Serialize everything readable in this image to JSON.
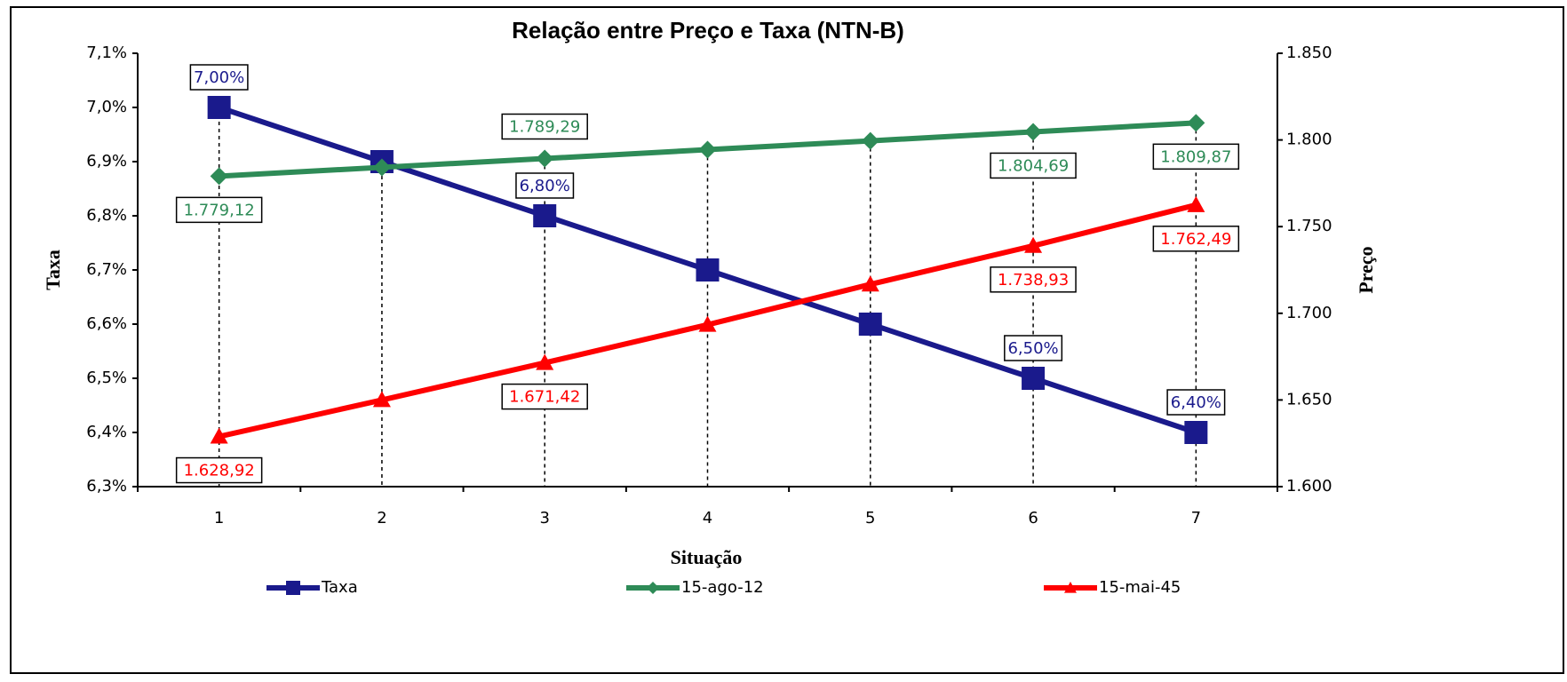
{
  "chart_data": {
    "type": "line",
    "title": "Relação entre Preço e Taxa (NTN-B)",
    "x_label": "Situação",
    "y_label": "Taxa",
    "y2_label": "Preço",
    "categories": [
      "1",
      "2",
      "3",
      "4",
      "5",
      "6",
      "7"
    ],
    "ylim": [
      6.3,
      7.1
    ],
    "yticks": [
      {
        "value": 6.3,
        "label": "6,3%"
      },
      {
        "value": 6.4,
        "label": "6,4%"
      },
      {
        "value": 6.5,
        "label": "6,5%"
      },
      {
        "value": 6.6,
        "label": "6,6%"
      },
      {
        "value": 6.7,
        "label": "6,7%"
      },
      {
        "value": 6.8,
        "label": "6,8%"
      },
      {
        "value": 6.9,
        "label": "6,9%"
      },
      {
        "value": 7.0,
        "label": "7,0%"
      },
      {
        "value": 7.1,
        "label": "7,1%"
      }
    ],
    "y2lim": [
      1600,
      1850
    ],
    "y2ticks": [
      {
        "value": 1600,
        "label": "1.600"
      },
      {
        "value": 1650,
        "label": "1.650"
      },
      {
        "value": 1700,
        "label": "1.700"
      },
      {
        "value": 1750,
        "label": "1.750"
      },
      {
        "value": 1800,
        "label": "1.800"
      },
      {
        "value": 1850,
        "label": "1.850"
      }
    ],
    "legend": "bottom",
    "series": [
      {
        "name": "Taxa",
        "color": "#1a1a8c",
        "marker": "square",
        "axis": "y",
        "values": [
          7.0,
          6.9,
          6.8,
          6.7,
          6.6,
          6.5,
          6.4
        ],
        "value_labels": [
          "7,00%",
          null,
          "6,80%",
          null,
          null,
          "6,50%",
          "6,40%"
        ]
      },
      {
        "name": "15-ago-12",
        "color": "#2e8b57",
        "marker": "diamond",
        "axis": "y2",
        "values": [
          1779.12,
          1784.2,
          1789.29,
          1794.4,
          1799.5,
          1804.69,
          1809.87
        ],
        "value_labels": [
          "1.779,12",
          null,
          "1.789,29",
          null,
          null,
          "1.804,69",
          "1.809,87"
        ]
      },
      {
        "name": "15-mai-45",
        "color": "#ff0000",
        "marker": "triangle",
        "axis": "y2",
        "values": [
          1628.92,
          1650.0,
          1671.42,
          1693.4,
          1716.7,
          1738.93,
          1762.49
        ],
        "value_labels": [
          "1.628,92",
          null,
          "1.671,42",
          null,
          null,
          "1.738,93",
          "1.762,49"
        ]
      }
    ]
  }
}
